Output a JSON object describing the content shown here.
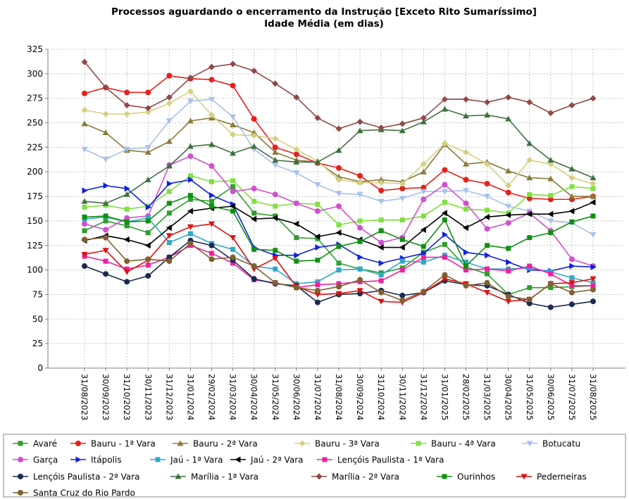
{
  "chart_data": {
    "type": "line",
    "title": "Processos aguardando o encerramento da Instrução [Exceto Rito Sumaríssimo]",
    "subtitle": "Idade Média (em dias)",
    "xlabel": "",
    "ylabel": "",
    "ylim": [
      0,
      325
    ],
    "yticks": [
      0,
      25,
      50,
      75,
      100,
      125,
      150,
      175,
      200,
      225,
      250,
      275,
      300,
      325
    ],
    "grid": true,
    "legend_position": "bottom",
    "categories": [
      "31/08/2023",
      "30/09/2023",
      "31/10/2023",
      "30/11/2023",
      "31/12/2023",
      "31/01/2024",
      "29/02/2024",
      "31/03/2024",
      "30/04/2024",
      "31/05/2024",
      "30/06/2024",
      "31/07/2024",
      "31/08/2024",
      "30/09/2024",
      "31/10/2024",
      "30/11/2024",
      "31/12/2024",
      "31/01/2025",
      "28/02/2025",
      "31/03/2025",
      "30/04/2025",
      "31/05/2025",
      "30/06/2025",
      "31/07/2025",
      "31/08/2025"
    ],
    "series": [
      {
        "name": "Avaré",
        "color": "#2e9e2e",
        "marker": "square",
        "values": [
          140,
          150,
          145,
          138,
          158,
          172,
          170,
          185,
          158,
          155,
          133,
          132,
          107,
          101,
          97,
          102,
          118,
          126,
          103,
          96,
          75,
          82,
          82,
          83,
          84
        ]
      },
      {
        "name": "Bauru - 1ª Vara",
        "color": "#e8201a",
        "marker": "circle",
        "values": [
          280,
          286,
          281,
          281,
          298,
          295,
          294,
          288,
          254,
          225,
          218,
          209,
          204,
          196,
          181,
          183,
          184,
          202,
          192,
          188,
          179,
          173,
          172,
          172,
          175
        ]
      },
      {
        "name": "Bauru - 2ª Vara",
        "color": "#8a7a3a",
        "marker": "triangle-up",
        "values": [
          249,
          240,
          222,
          220,
          231,
          252,
          255,
          248,
          240,
          220,
          212,
          210,
          195,
          190,
          192,
          190,
          200,
          228,
          208,
          210,
          201,
          194,
          193,
          175,
          175
        ]
      },
      {
        "name": "Bauru - 3ª Vara",
        "color": "#d4d080",
        "marker": "diamond",
        "values": [
          263,
          259,
          259,
          261,
          270,
          282,
          258,
          238,
          237,
          234,
          223,
          211,
          192,
          189,
          189,
          188,
          208,
          229,
          220,
          208,
          186,
          212,
          208,
          194,
          188
        ]
      },
      {
        "name": "Bauru - 4ª Vara",
        "color": "#80e040",
        "marker": "square",
        "values": [
          164,
          166,
          162,
          165,
          180,
          196,
          190,
          191,
          170,
          165,
          168,
          167,
          146,
          150,
          151,
          151,
          155,
          169,
          162,
          161,
          158,
          177,
          176,
          185,
          183
        ]
      },
      {
        "name": "Botucatu",
        "color": "#a8c0ec",
        "marker": "triangle-down",
        "values": [
          223,
          213,
          223,
          225,
          252,
          272,
          274,
          256,
          223,
          207,
          199,
          187,
          178,
          177,
          170,
          173,
          180,
          180,
          181,
          175,
          165,
          160,
          150,
          148,
          136
        ]
      },
      {
        "name": "Garça",
        "color": "#d050d0",
        "marker": "circle",
        "values": [
          147,
          141,
          153,
          155,
          207,
          216,
          206,
          180,
          183,
          177,
          168,
          160,
          165,
          143,
          128,
          133,
          172,
          187,
          168,
          142,
          148,
          158,
          140,
          111,
          104
        ]
      },
      {
        "name": "Itápolis",
        "color": "#1020e0",
        "marker": "triangle-right",
        "values": [
          181,
          186,
          183,
          164,
          188,
          192,
          176,
          167,
          123,
          115,
          115,
          123,
          126,
          113,
          107,
          112,
          117,
          136,
          118,
          115,
          108,
          100,
          99,
          104,
          103
        ]
      },
      {
        "name": "Jaú - 1ª Vara",
        "color": "#30a8c8",
        "marker": "square",
        "values": [
          152,
          154,
          149,
          153,
          128,
          137,
          127,
          121,
          104,
          101,
          86,
          88,
          100,
          101,
          95,
          109,
          108,
          115,
          108,
          101,
          101,
          102,
          98,
          92,
          87
        ]
      },
      {
        "name": "Jaú - 2ª Vara",
        "color": "#000000",
        "marker": "triangle-left",
        "values": [
          130,
          135,
          131,
          125,
          143,
          160,
          163,
          165,
          152,
          153,
          147,
          134,
          138,
          131,
          123,
          123,
          141,
          158,
          143,
          154,
          156,
          157,
          157,
          160,
          169
        ]
      },
      {
        "name": "Lençóis Paulista - 1ª Vara",
        "color": "#f020a0",
        "marker": "square",
        "values": [
          114,
          109,
          101,
          105,
          113,
          125,
          117,
          107,
          90,
          87,
          82,
          85,
          86,
          88,
          89,
          100,
          113,
          113,
          100,
          101,
          99,
          104,
          96,
          84,
          84
        ]
      },
      {
        "name": "Lençóis Paulista - 2ª Vara",
        "color": "#1a2a50",
        "marker": "circle",
        "values": [
          104,
          96,
          88,
          94,
          113,
          130,
          125,
          110,
          91,
          86,
          84,
          67,
          75,
          76,
          79,
          74,
          77,
          89,
          85,
          84,
          75,
          66,
          62,
          65,
          68
        ]
      },
      {
        "name": "Marília - 1ª Vara",
        "color": "#407040",
        "marker": "triangle-up",
        "values": [
          170,
          168,
          177,
          192,
          206,
          226,
          228,
          219,
          226,
          212,
          210,
          210,
          222,
          242,
          243,
          242,
          251,
          264,
          257,
          258,
          254,
          229,
          212,
          203,
          194
        ]
      },
      {
        "name": "Marília - 2ª Vara",
        "color": "#904848",
        "marker": "diamond",
        "values": [
          312,
          286,
          268,
          265,
          276,
          296,
          307,
          310,
          303,
          290,
          276,
          255,
          244,
          251,
          245,
          249,
          255,
          274,
          274,
          271,
          276,
          271,
          260,
          268,
          275
        ]
      },
      {
        "name": "Ourinhos",
        "color": "#109010",
        "marker": "square",
        "values": [
          154,
          155,
          149,
          150,
          168,
          176,
          165,
          160,
          121,
          120,
          109,
          110,
          124,
          129,
          140,
          131,
          124,
          151,
          104,
          125,
          122,
          133,
          138,
          149,
          155
        ]
      },
      {
        "name": "Pederneiras",
        "color": "#e01010",
        "marker": "triangle-down",
        "values": [
          116,
          120,
          98,
          110,
          135,
          144,
          147,
          133,
          101,
          112,
          83,
          75,
          76,
          79,
          68,
          67,
          77,
          91,
          86,
          77,
          68,
          70,
          86,
          87,
          91
        ]
      },
      {
        "name": "Santa Cruz do Rio Pardo",
        "color": "#806030",
        "marker": "circle",
        "values": [
          131,
          133,
          109,
          111,
          109,
          127,
          111,
          113,
          104,
          87,
          82,
          79,
          83,
          90,
          77,
          69,
          78,
          95,
          84,
          87,
          73,
          70,
          86,
          77,
          80
        ]
      }
    ]
  }
}
